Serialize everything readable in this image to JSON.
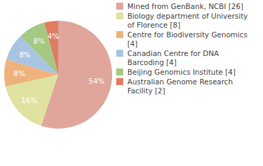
{
  "chart_data": {
    "type": "pie",
    "categories": [
      "Mined from GenBank, NCBI [26]",
      "Biology department of University of Florence [8]",
      "Centre for Biodiversity Genomics [4]",
      "Canadian Centre for DNA Barcoding [4]",
      "Beijing Genomics Institute [4]",
      "Australian Genome Research Facility [2]"
    ],
    "values": [
      54,
      16,
      8,
      8,
      8,
      4
    ],
    "value_labels": [
      "54%",
      "16%",
      "8%",
      "8%",
      "8%",
      "4%"
    ],
    "colors": [
      "#e0a59b",
      "#dfe2a0",
      "#f0b27c",
      "#a9c3e3",
      "#a5c882",
      "#df7d62"
    ],
    "data_labels": true,
    "legend": "right"
  }
}
